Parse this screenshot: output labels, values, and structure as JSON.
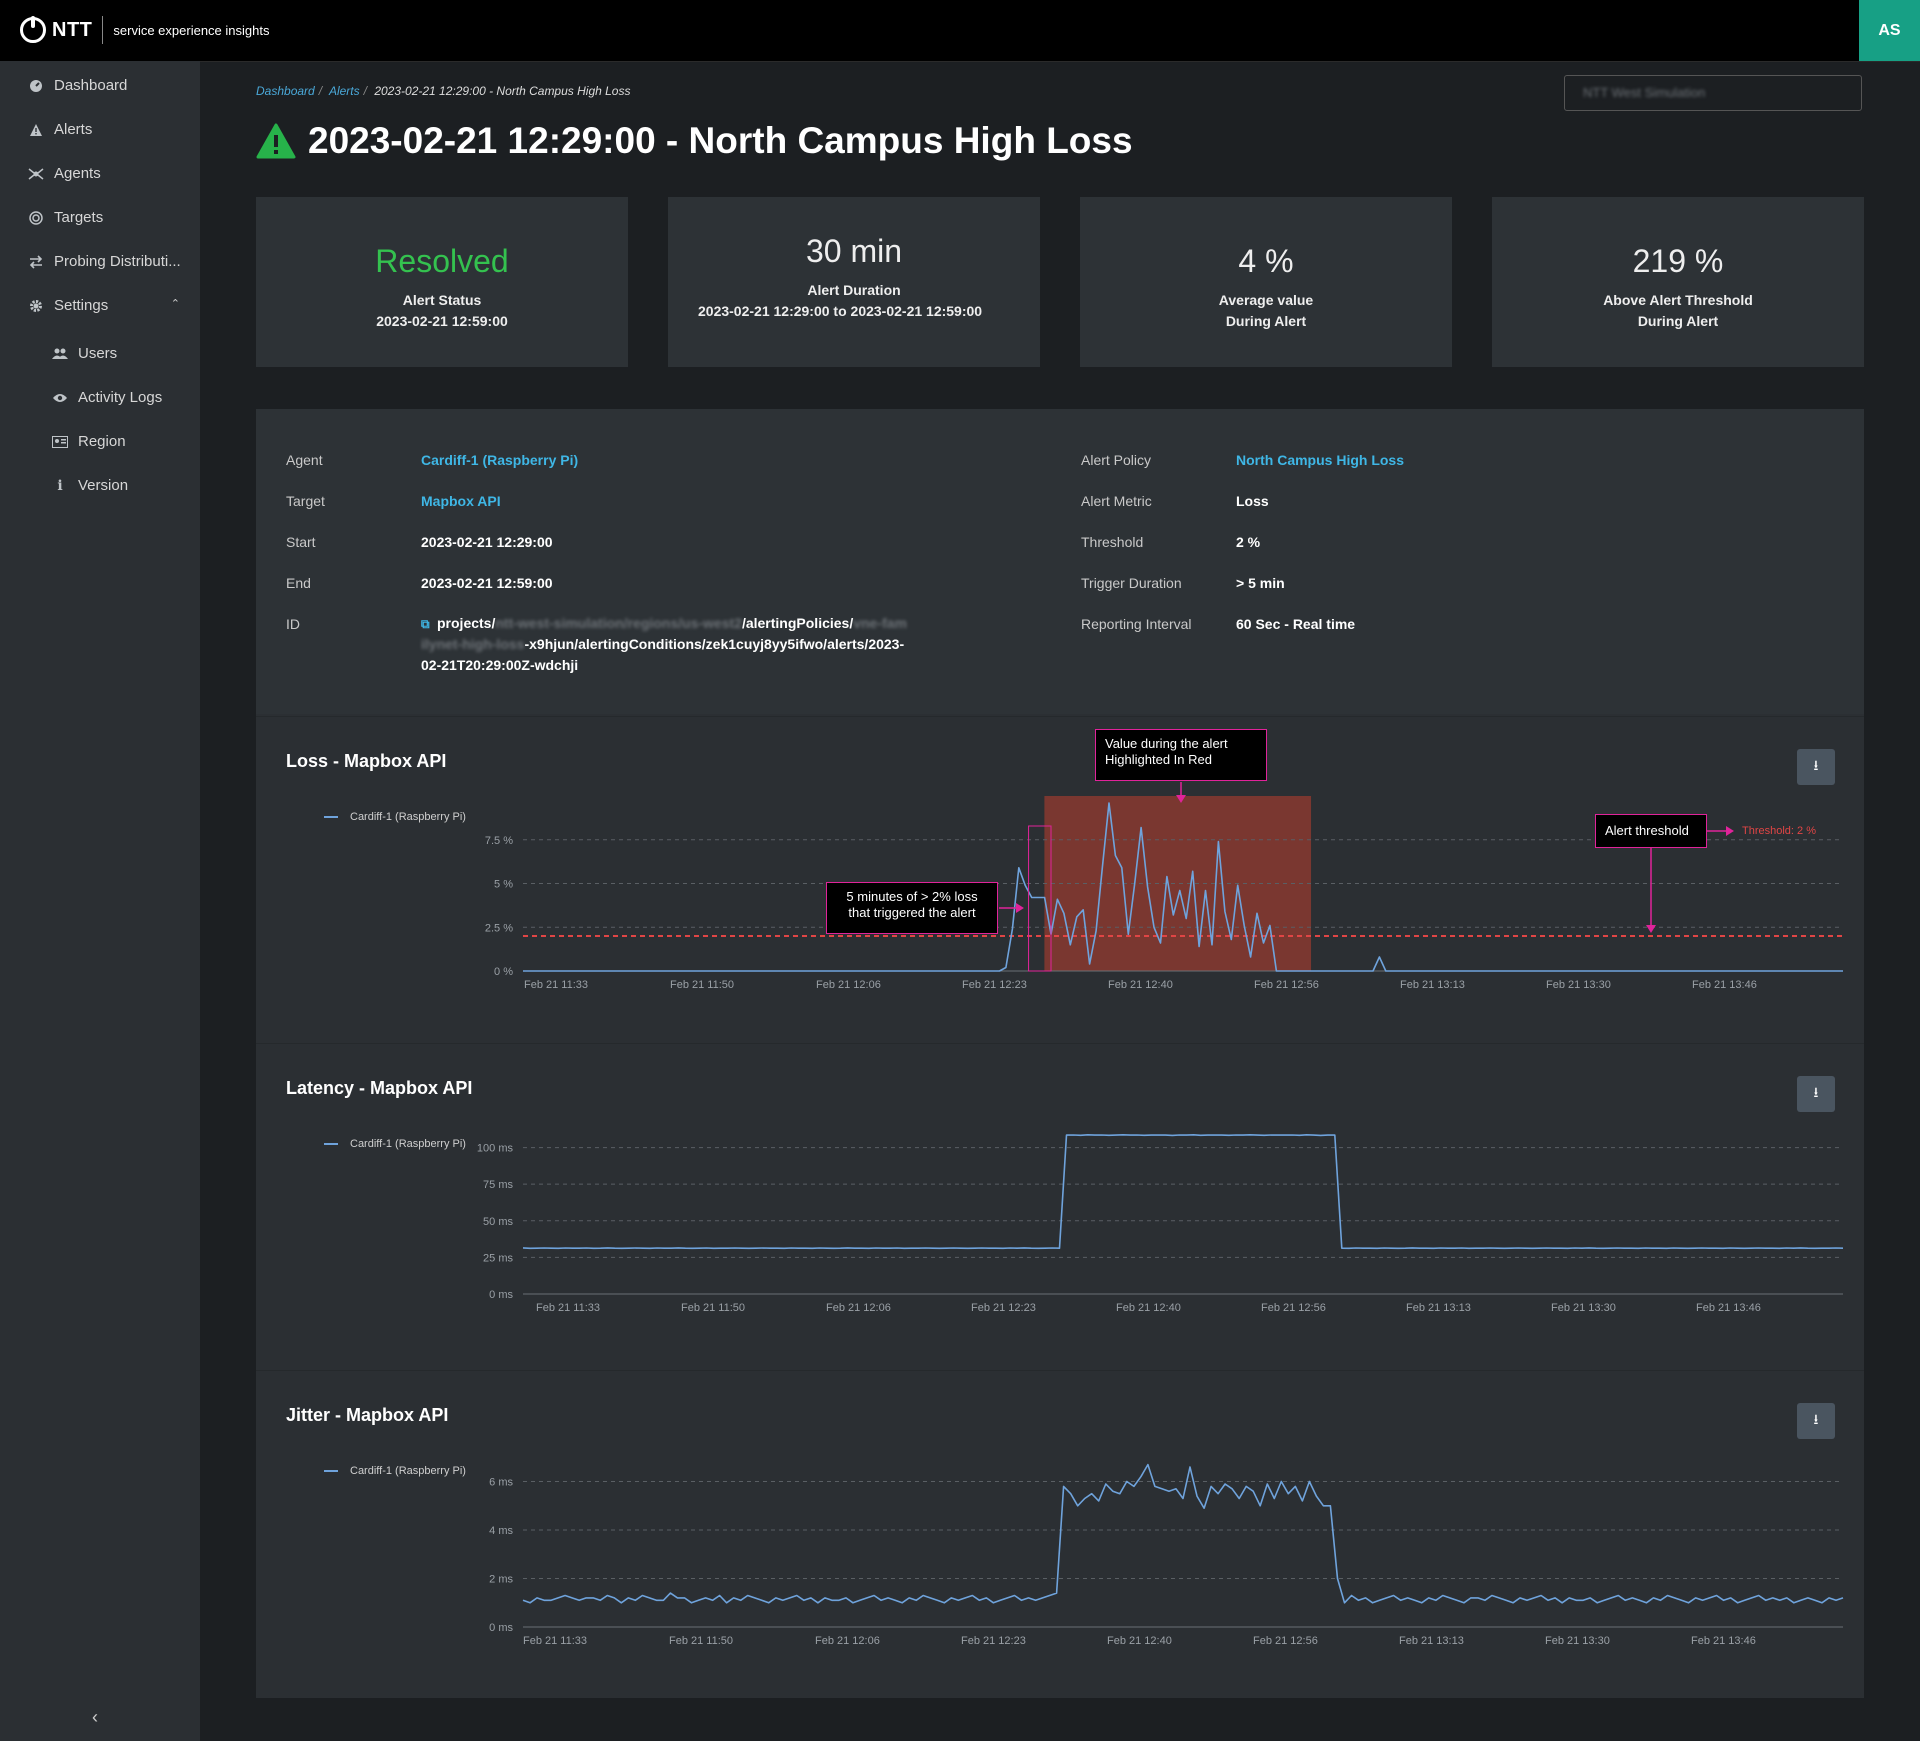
{
  "app": {
    "brand": "NTT",
    "subtitle": "service experience insights",
    "avatar": "AS"
  },
  "sidebar": {
    "items": [
      {
        "label": "Dashboard",
        "icon": "dashboard-icon"
      },
      {
        "label": "Alerts",
        "icon": "alert-icon"
      },
      {
        "label": "Agents",
        "icon": "agents-icon"
      },
      {
        "label": "Targets",
        "icon": "target-icon"
      },
      {
        "label": "Probing Distributi...",
        "icon": "swap-icon"
      },
      {
        "label": "Settings",
        "icon": "gear-icon"
      }
    ],
    "settings_items": [
      {
        "label": "Users",
        "icon": "users-icon"
      },
      {
        "label": "Activity Logs",
        "icon": "eye-icon"
      },
      {
        "label": "Region",
        "icon": "id-card-icon"
      },
      {
        "label": "Version",
        "icon": "info-icon"
      }
    ]
  },
  "breadcrumb": {
    "dashboard": "Dashboard",
    "alerts": "Alerts",
    "current": "2023-02-21 12:29:00 - North Campus High Loss"
  },
  "project_select": {
    "value": "NTT West Simulation"
  },
  "title": "2023-02-21 12:29:00 - North Campus High Loss",
  "cards": [
    {
      "value": "Resolved",
      "label": "Alert Status",
      "sub": "2023-02-21 12:59:00"
    },
    {
      "value": "30 min",
      "label": "Alert Duration",
      "sub": "2023-02-21 12:29:00 to 2023-02-21 12:59:00"
    },
    {
      "value": "4 %",
      "label": "Average value",
      "sub": "During Alert"
    },
    {
      "value": "219 %",
      "label": "Above Alert Threshold",
      "sub": "During Alert"
    }
  ],
  "details": {
    "agent_label": "Agent",
    "agent": "Cardiff-1 (Raspberry Pi)",
    "target_label": "Target",
    "target": "Mapbox API",
    "start_label": "Start",
    "start": "2023-02-21 12:29:00",
    "end_label": "End",
    "end": "2023-02-21 12:59:00",
    "id_label": "ID",
    "id_line1_a": "projects/",
    "id_line1_blur": "ntt-west-simulation/regions/us-west2",
    "id_line1_b": "/alertingPolicies/",
    "id_line1_blur2": "vne-fam",
    "id_line2_blur": "ilynet-high-loss",
    "id_line2_b": "-x9hjun/alertingConditions/zek1cuyj8yy5ifwo/alerts/2023-",
    "id_line3": "02-21T20:29:00Z-wdchji",
    "policy_label": "Alert Policy",
    "policy": "North Campus High Loss",
    "metric_label": "Alert Metric",
    "metric": "Loss",
    "threshold_label": "Threshold",
    "threshold": "2 %",
    "trigger_label": "Trigger Duration",
    "trigger": "> 5 min",
    "interval_label": "Reporting Interval",
    "interval": "60 Sec - Real time"
  },
  "annotations": {
    "value_during": "Value during the alert Highlighted In Red",
    "five_minutes": "5 minutes of > 2% loss that triggered the alert",
    "alert_threshold": "Alert threshold",
    "threshold_label": "Threshold: 2 %"
  },
  "chart_data": [
    {
      "type": "line",
      "title": "Loss - Mapbox API",
      "series": [
        {
          "name": "Cardiff-1 (Raspberry Pi)",
          "values": [
            0,
            0,
            0,
            0,
            0,
            0,
            0,
            0,
            0,
            0,
            0,
            0,
            0,
            0,
            0,
            0,
            0,
            0,
            0,
            0,
            0,
            0,
            0,
            0,
            0,
            0,
            0,
            0,
            0,
            0,
            0,
            0,
            0,
            0,
            0,
            0,
            0,
            0,
            0,
            0,
            0,
            0,
            0,
            0,
            0,
            0,
            0,
            0,
            0,
            0,
            0,
            0,
            0,
            0,
            0,
            0,
            0,
            0,
            0,
            0,
            0,
            0,
            0,
            0,
            0,
            0,
            0,
            0,
            0,
            0,
            0,
            0,
            0,
            0,
            0,
            0.2,
            2.4,
            5.9,
            4.9,
            4.2,
            4.2,
            4.2,
            2.1,
            4.1,
            3.3,
            1.5,
            3.1,
            3.5,
            0.4,
            2.3,
            6.0,
            9.6,
            6.6,
            5.9,
            2.1,
            5.0,
            8.2,
            4.8,
            2.5,
            1.6,
            5.4,
            3.2,
            4.6,
            3.0,
            5.7,
            1.4,
            4.6,
            1.5,
            7.4,
            3.4,
            1.8,
            4.9,
            2.6,
            0.8,
            3.3,
            1.6,
            2.6,
            0,
            0,
            0,
            0,
            0,
            0,
            0,
            0,
            0,
            0,
            0,
            0,
            0,
            0,
            0,
            0,
            0.8,
            0,
            0,
            0,
            0,
            0,
            0,
            0,
            0,
            0,
            0,
            0,
            0,
            0,
            0,
            0,
            0,
            0,
            0,
            0,
            0,
            0,
            0,
            0,
            0,
            0,
            0,
            0,
            0,
            0,
            0,
            0,
            0,
            0,
            0,
            0,
            0,
            0,
            0,
            0,
            0,
            0,
            0,
            0,
            0,
            0,
            0,
            0,
            0,
            0,
            0,
            0,
            0,
            0,
            0,
            0,
            0,
            0,
            0,
            0,
            0,
            0,
            0,
            0,
            0,
            0,
            0,
            0,
            0,
            0,
            0,
            0,
            0
          ]
        }
      ],
      "x_ticks": [
        "Feb 21 11:33",
        "Feb 21 11:50",
        "Feb 21 12:06",
        "Feb 21 12:23",
        "Feb 21 12:40",
        "Feb 21 12:56",
        "Feb 21 13:13",
        "Feb 21 13:30",
        "Feb 21 13:46"
      ],
      "y_ticks": [
        "0 %",
        "2.5 %",
        "5 %",
        "7.5 %"
      ],
      "ylim": [
        0,
        10
      ],
      "threshold": 2,
      "highlight_x": [
        0.395,
        0.597
      ],
      "trigger_x": [
        0.383,
        0.4
      ]
    },
    {
      "type": "line",
      "title": "Latency - Mapbox API",
      "series": [
        {
          "name": "Cardiff-1 (Raspberry Pi)",
          "values": [
            31.5,
            31.2,
            31.3,
            31.4,
            31.3,
            31.2,
            31.4,
            31.3,
            31.3,
            31.4,
            31.2,
            31.3,
            31.5,
            31.3,
            31.2,
            31.3,
            31.4,
            31.3,
            31.2,
            31.4,
            31.3,
            31.3,
            31.5,
            31.3,
            31.2,
            31.3,
            31.4,
            31.2,
            31.3,
            31.3,
            31.4,
            31.3,
            31.2,
            31.3,
            31.4,
            31.3,
            31.3,
            31.2,
            31.4,
            31.3,
            31.3,
            31.2,
            31.4,
            31.3,
            31.2,
            31.3,
            31.5,
            31.3,
            31.3,
            31.2,
            31.4,
            31.3,
            31.3,
            31.4,
            31.2,
            31.3,
            31.3,
            31.4,
            31.3,
            31.2,
            31.3,
            31.4,
            31.3,
            31.2,
            31.3,
            31.4,
            31.3,
            31.3,
            31.2,
            31.4,
            31.3,
            31.5,
            31.3,
            31.2,
            31.3,
            31.4,
            31.3,
            108.5,
            108.6,
            108.4,
            108.7,
            108.5,
            108.6,
            108.4,
            108.5,
            108.7,
            108.5,
            108.6,
            108.4,
            108.5,
            108.6,
            108.5,
            108.3,
            108.6,
            108.5,
            108.7,
            108.4,
            108.5,
            108.6,
            108.5,
            108.4,
            108.6,
            108.5,
            108.7,
            108.5,
            108.4,
            108.6,
            108.5,
            108.5,
            108.6,
            108.4,
            108.7,
            108.5,
            108.3,
            108.5,
            108.6,
            31.3,
            31.2,
            31.4,
            31.3,
            31.3,
            31.2,
            31.4,
            31.3,
            31.2,
            31.3,
            31.5,
            31.3,
            31.3,
            31.2,
            31.4,
            31.3,
            31.3,
            31.4,
            31.2,
            31.3,
            31.3,
            31.4,
            31.3,
            31.2,
            31.3,
            31.4,
            31.3,
            31.2,
            31.3,
            31.4,
            31.3,
            31.3,
            31.2,
            31.4,
            31.3,
            31.5,
            31.3,
            31.2,
            31.3,
            31.4,
            31.3,
            31.3,
            31.2,
            31.4,
            31.3,
            31.3,
            31.2,
            31.4,
            31.3,
            31.2,
            31.3,
            31.4,
            31.3,
            31.3,
            31.2,
            31.4,
            31.3,
            31.2,
            31.3,
            31.4,
            31.3,
            31.3,
            31.2,
            31.4,
            31.3,
            31.5,
            31.3,
            31.2,
            31.3,
            31.3,
            31.4,
            31.3
          ]
        }
      ],
      "x_ticks": [
        "Feb 21 11:33",
        "Feb 21 11:50",
        "Feb 21 12:06",
        "Feb 21 12:23",
        "Feb 21 12:40",
        "Feb 21 12:56",
        "Feb 21 13:13",
        "Feb 21 13:30",
        "Feb 21 13:46"
      ],
      "y_ticks": [
        "0 ms",
        "25 ms",
        "50 ms",
        "75 ms",
        "100 ms"
      ],
      "ylim": [
        0,
        112
      ]
    },
    {
      "type": "line",
      "title": "Jitter - Mapbox API",
      "series": [
        {
          "name": "Cardiff-1 (Raspberry Pi)",
          "values": [
            1.1,
            1.0,
            1.2,
            1.1,
            1.1,
            1.2,
            1.3,
            1.2,
            1.1,
            1.2,
            1.2,
            1.1,
            1.3,
            1.2,
            1.0,
            1.2,
            1.1,
            1.3,
            1.2,
            1.1,
            1.1,
            1.4,
            1.2,
            1.2,
            1.0,
            1.1,
            1.2,
            1.1,
            1.3,
            1.0,
            1.2,
            1.1,
            1.3,
            1.2,
            1.1,
            1.0,
            1.2,
            1.1,
            1.2,
            1.3,
            1.1,
            1.2,
            1.0,
            1.2,
            1.1,
            1.1,
            1.2,
            1.0,
            1.1,
            1.2,
            1.3,
            1.1,
            1.2,
            1.1,
            1.0,
            1.2,
            1.1,
            1.3,
            1.2,
            1.1,
            1.0,
            1.2,
            1.1,
            1.2,
            1.3,
            1.1,
            1.2,
            1.0,
            1.1,
            1.2,
            1.3,
            1.1,
            1.2,
            1.1,
            1.2,
            1.3,
            1.4,
            5.8,
            5.5,
            5.0,
            5.3,
            5.5,
            5.2,
            5.9,
            5.6,
            5.5,
            6.0,
            5.8,
            6.2,
            6.7,
            5.8,
            5.7,
            5.6,
            5.7,
            5.3,
            6.6,
            5.4,
            4.9,
            5.8,
            5.5,
            5.9,
            5.7,
            5.3,
            5.8,
            5.6,
            5.0,
            5.9,
            5.3,
            6.0,
            5.5,
            5.8,
            5.2,
            6.0,
            5.4,
            5.0,
            5.0,
            2.0,
            1.0,
            1.3,
            1.1,
            1.2,
            1.0,
            1.1,
            1.2,
            1.3,
            1.1,
            1.2,
            1.1,
            1.0,
            1.2,
            1.1,
            1.3,
            1.2,
            1.1,
            1.0,
            1.2,
            1.2,
            1.1,
            1.3,
            1.2,
            1.1,
            1.0,
            1.2,
            1.1,
            1.2,
            1.3,
            1.1,
            1.2,
            1.0,
            1.2,
            1.1,
            1.1,
            1.2,
            1.0,
            1.1,
            1.2,
            1.3,
            1.1,
            1.2,
            1.1,
            1.0,
            1.2,
            1.1,
            1.3,
            1.2,
            1.1,
            1.0,
            1.2,
            1.1,
            1.2,
            1.3,
            1.1,
            1.2,
            1.0,
            1.1,
            1.2,
            1.3,
            1.1,
            1.2,
            1.1,
            1.2,
            1.0,
            1.1,
            1.2,
            1.1,
            1.0,
            1.2,
            1.1,
            1.2
          ]
        }
      ],
      "x_ticks": [
        "Feb 21 11:33",
        "Feb 21 11:50",
        "Feb 21 12:06",
        "Feb 21 12:23",
        "Feb 21 12:40",
        "Feb 21 12:56",
        "Feb 21 13:13",
        "Feb 21 13:30",
        "Feb 21 13:46"
      ],
      "y_ticks": [
        "0 ms",
        "2 ms",
        "4 ms",
        "6 ms"
      ],
      "ylim": [
        0,
        6.6
      ]
    }
  ]
}
